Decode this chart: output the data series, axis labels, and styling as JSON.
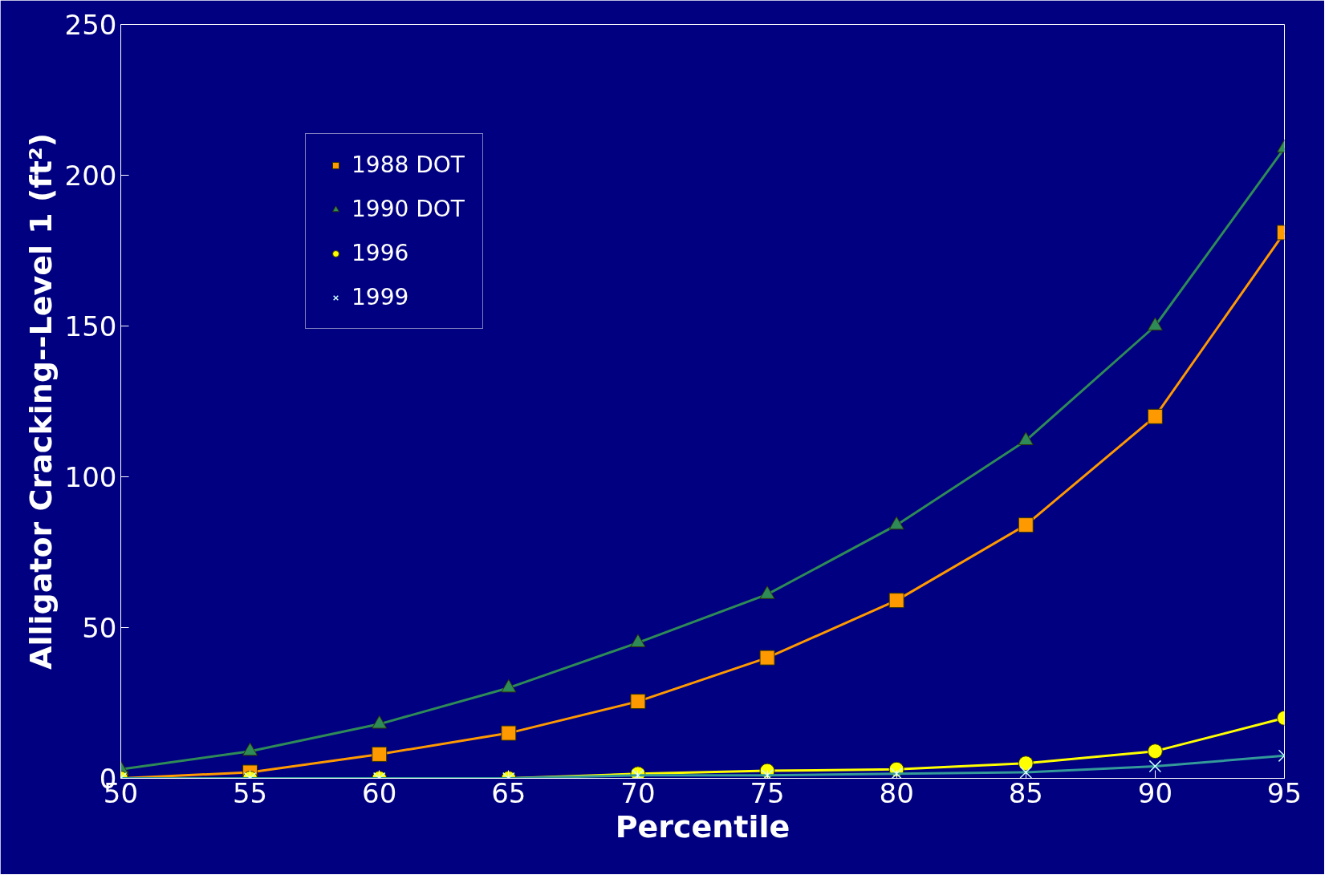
{
  "chart_data": {
    "type": "line",
    "xlabel": "Percentile",
    "ylabel": "Alligator Cracking--Level 1 (ft²)",
    "x": [
      50,
      55,
      60,
      65,
      70,
      75,
      80,
      85,
      90,
      95
    ],
    "xlim": [
      50,
      95
    ],
    "xticks": [
      50,
      55,
      60,
      65,
      70,
      75,
      80,
      85,
      90,
      95
    ],
    "ylim": [
      0,
      250
    ],
    "yticks": [
      0,
      50,
      100,
      150,
      200,
      250
    ],
    "grid": false,
    "legend": "top left",
    "series": [
      {
        "name": "1988 DOT",
        "color": "#ff9900",
        "marker": "square",
        "values": [
          0,
          2,
          8,
          15,
          25.5,
          40,
          59,
          84,
          120,
          181
        ]
      },
      {
        "name": "1990 DOT",
        "color": "#2e8b57",
        "marker": "triangle",
        "values": [
          3,
          9,
          18,
          30,
          45,
          61,
          84,
          112,
          150,
          209
        ]
      },
      {
        "name": "1996",
        "color": "#ffff00",
        "marker": "circle",
        "values": [
          0,
          0,
          0,
          0,
          1.5,
          2.5,
          3,
          5,
          9,
          20
        ]
      },
      {
        "name": "1999",
        "color": "#339999",
        "marker": "cross",
        "values": [
          0,
          0,
          0,
          0,
          1,
          1,
          1.5,
          2,
          4,
          7.5
        ]
      }
    ]
  }
}
